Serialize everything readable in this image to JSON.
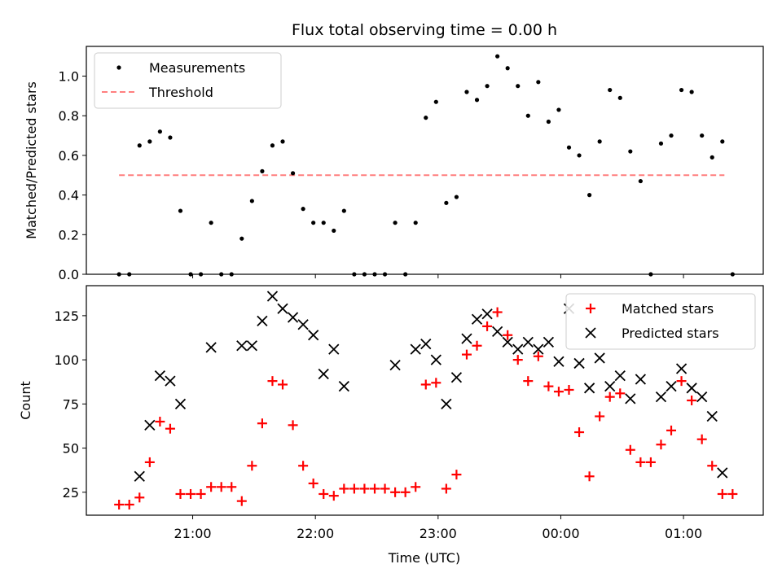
{
  "colors": {
    "measurement": "#000000",
    "threshold": "#ff7f7f",
    "matched": "#ff0000",
    "predicted": "#000000"
  },
  "chart_data": [
    {
      "type": "scatter",
      "title": "Flux total observing time = 0.00 h",
      "xlabel": "",
      "ylabel": "Matched/Predicted stars",
      "ylim": [
        0,
        1.15
      ],
      "yticks": [
        0.0,
        0.2,
        0.4,
        0.6,
        0.8,
        1.0
      ],
      "ytick_labels": [
        "0.0",
        "0.2",
        "0.4",
        "0.6",
        "0.8",
        "1.0"
      ],
      "xlim": [
        "20:08",
        "01:39"
      ],
      "grid": false,
      "legend": {
        "placement": "top-left",
        "entries": [
          {
            "label": "Measurements",
            "marker": "dot",
            "color": "#000000"
          },
          {
            "label": "Threshold",
            "marker": "dashed-line",
            "color": "#ff7f7f"
          }
        ]
      },
      "threshold": {
        "name": "Threshold",
        "value": 0.5,
        "x_start": "20:24",
        "x_end": "01:20"
      },
      "series": [
        {
          "name": "Measurements",
          "marker": "dot",
          "points": [
            [
              "20:24",
              0.0
            ],
            [
              "20:29",
              0.0
            ],
            [
              "20:34",
              0.65
            ],
            [
              "20:39",
              0.67
            ],
            [
              "20:44",
              0.72
            ],
            [
              "20:49",
              0.69
            ],
            [
              "20:54",
              0.32
            ],
            [
              "20:59",
              0.0
            ],
            [
              "21:04",
              0.0
            ],
            [
              "21:09",
              0.26
            ],
            [
              "21:14",
              0.0
            ],
            [
              "21:19",
              0.0
            ],
            [
              "21:24",
              0.18
            ],
            [
              "21:29",
              0.37
            ],
            [
              "21:34",
              0.52
            ],
            [
              "21:39",
              0.65
            ],
            [
              "21:44",
              0.67
            ],
            [
              "21:49",
              0.51
            ],
            [
              "21:54",
              0.33
            ],
            [
              "21:59",
              0.26
            ],
            [
              "22:04",
              0.26
            ],
            [
              "22:09",
              0.22
            ],
            [
              "22:14",
              0.32
            ],
            [
              "22:19",
              0.0
            ],
            [
              "22:24",
              0.0
            ],
            [
              "22:29",
              0.0
            ],
            [
              "22:34",
              0.0
            ],
            [
              "22:39",
              0.26
            ],
            [
              "22:44",
              0.0
            ],
            [
              "22:49",
              0.26
            ],
            [
              "22:54",
              0.79
            ],
            [
              "22:59",
              0.87
            ],
            [
              "23:04",
              0.36
            ],
            [
              "23:09",
              0.39
            ],
            [
              "23:14",
              0.92
            ],
            [
              "23:19",
              0.88
            ],
            [
              "23:24",
              0.95
            ],
            [
              "23:29",
              1.1
            ],
            [
              "23:34",
              1.04
            ],
            [
              "23:39",
              0.95
            ],
            [
              "23:44",
              0.8
            ],
            [
              "23:49",
              0.97
            ],
            [
              "23:54",
              0.77
            ],
            [
              "23:59",
              0.83
            ],
            [
              "00:04",
              0.64
            ],
            [
              "00:09",
              0.6
            ],
            [
              "00:14",
              0.4
            ],
            [
              "00:19",
              0.67
            ],
            [
              "00:24",
              0.93
            ],
            [
              "00:29",
              0.89
            ],
            [
              "00:34",
              0.62
            ],
            [
              "00:39",
              0.47
            ],
            [
              "00:44",
              0.0
            ],
            [
              "00:49",
              0.66
            ],
            [
              "00:54",
              0.7
            ],
            [
              "00:59",
              0.93
            ],
            [
              "01:04",
              0.92
            ],
            [
              "01:09",
              0.7
            ],
            [
              "01:14",
              0.59
            ],
            [
              "01:19",
              0.67
            ],
            [
              "01:24",
              0.0
            ]
          ]
        }
      ]
    },
    {
      "type": "scatter",
      "title": "",
      "xlabel": "Time (UTC)",
      "ylabel": "Count",
      "ylim": [
        12,
        142
      ],
      "yticks": [
        25,
        50,
        75,
        100,
        125
      ],
      "ytick_labels": [
        "25",
        "50",
        "75",
        "100",
        "125"
      ],
      "xlim": [
        "20:08",
        "01:39"
      ],
      "xticks": [
        "21:00",
        "22:00",
        "23:00",
        "00:00",
        "01:00"
      ],
      "xtick_labels": [
        "21:00",
        "22:00",
        "23:00",
        "00:00",
        "01:00"
      ],
      "grid": false,
      "legend": {
        "placement": "top-right",
        "entries": [
          {
            "label": "Matched stars",
            "marker": "plus",
            "color": "#ff0000"
          },
          {
            "label": "Predicted stars",
            "marker": "x",
            "color": "#000000"
          }
        ]
      },
      "series": [
        {
          "name": "Matched stars",
          "marker": "plus",
          "points": [
            [
              "20:24",
              18
            ],
            [
              "20:29",
              18
            ],
            [
              "20:34",
              22
            ],
            [
              "20:39",
              42
            ],
            [
              "20:44",
              65
            ],
            [
              "20:49",
              61
            ],
            [
              "20:54",
              24
            ],
            [
              "20:59",
              24
            ],
            [
              "21:04",
              24
            ],
            [
              "21:09",
              28
            ],
            [
              "21:14",
              28
            ],
            [
              "21:19",
              28
            ],
            [
              "21:24",
              20
            ],
            [
              "21:29",
              40
            ],
            [
              "21:34",
              64
            ],
            [
              "21:39",
              88
            ],
            [
              "21:44",
              86
            ],
            [
              "21:49",
              63
            ],
            [
              "21:54",
              40
            ],
            [
              "21:59",
              30
            ],
            [
              "22:04",
              24
            ],
            [
              "22:09",
              23
            ],
            [
              "22:14",
              27
            ],
            [
              "22:19",
              27
            ],
            [
              "22:24",
              27
            ],
            [
              "22:29",
              27
            ],
            [
              "22:34",
              27
            ],
            [
              "22:39",
              25
            ],
            [
              "22:44",
              25
            ],
            [
              "22:49",
              28
            ],
            [
              "22:54",
              86
            ],
            [
              "22:59",
              87
            ],
            [
              "23:04",
              27
            ],
            [
              "23:09",
              35
            ],
            [
              "23:14",
              103
            ],
            [
              "23:19",
              108
            ],
            [
              "23:24",
              119
            ],
            [
              "23:29",
              127
            ],
            [
              "23:34",
              114
            ],
            [
              "23:39",
              100
            ],
            [
              "23:44",
              88
            ],
            [
              "23:49",
              102
            ],
            [
              "23:54",
              85
            ],
            [
              "23:59",
              82
            ],
            [
              "00:04",
              83
            ],
            [
              "00:09",
              59
            ],
            [
              "00:14",
              34
            ],
            [
              "00:19",
              68
            ],
            [
              "00:24",
              79
            ],
            [
              "00:29",
              81
            ],
            [
              "00:34",
              49
            ],
            [
              "00:39",
              42
            ],
            [
              "00:44",
              42
            ],
            [
              "00:49",
              52
            ],
            [
              "00:54",
              60
            ],
            [
              "00:59",
              88
            ],
            [
              "01:04",
              77
            ],
            [
              "01:09",
              55
            ],
            [
              "01:14",
              40
            ],
            [
              "01:19",
              24
            ],
            [
              "01:24",
              24
            ]
          ]
        },
        {
          "name": "Predicted stars",
          "marker": "x",
          "points": [
            [
              "20:34",
              34
            ],
            [
              "20:39",
              63
            ],
            [
              "20:44",
              91
            ],
            [
              "20:49",
              88
            ],
            [
              "20:54",
              75
            ],
            [
              "21:09",
              107
            ],
            [
              "21:24",
              108
            ],
            [
              "21:29",
              108
            ],
            [
              "21:34",
              122
            ],
            [
              "21:39",
              136
            ],
            [
              "21:44",
              129
            ],
            [
              "21:49",
              124
            ],
            [
              "21:54",
              120
            ],
            [
              "21:59",
              114
            ],
            [
              "22:04",
              92
            ],
            [
              "22:09",
              106
            ],
            [
              "22:14",
              85
            ],
            [
              "22:39",
              97
            ],
            [
              "22:49",
              106
            ],
            [
              "22:54",
              109
            ],
            [
              "22:59",
              100
            ],
            [
              "23:04",
              75
            ],
            [
              "23:09",
              90
            ],
            [
              "23:14",
              112
            ],
            [
              "23:19",
              123
            ],
            [
              "23:24",
              126
            ],
            [
              "23:29",
              116
            ],
            [
              "23:34",
              110
            ],
            [
              "23:39",
              106
            ],
            [
              "23:44",
              110
            ],
            [
              "23:49",
              106
            ],
            [
              "23:54",
              110
            ],
            [
              "23:59",
              99
            ],
            [
              "00:04",
              129
            ],
            [
              "00:09",
              98
            ],
            [
              "00:14",
              84
            ],
            [
              "00:19",
              101
            ],
            [
              "00:24",
              85
            ],
            [
              "00:29",
              91
            ],
            [
              "00:34",
              78
            ],
            [
              "00:39",
              89
            ],
            [
              "00:49",
              79
            ],
            [
              "00:54",
              85
            ],
            [
              "00:59",
              95
            ],
            [
              "01:04",
              84
            ],
            [
              "01:09",
              79
            ],
            [
              "01:14",
              68
            ],
            [
              "01:19",
              36
            ]
          ]
        }
      ]
    }
  ]
}
